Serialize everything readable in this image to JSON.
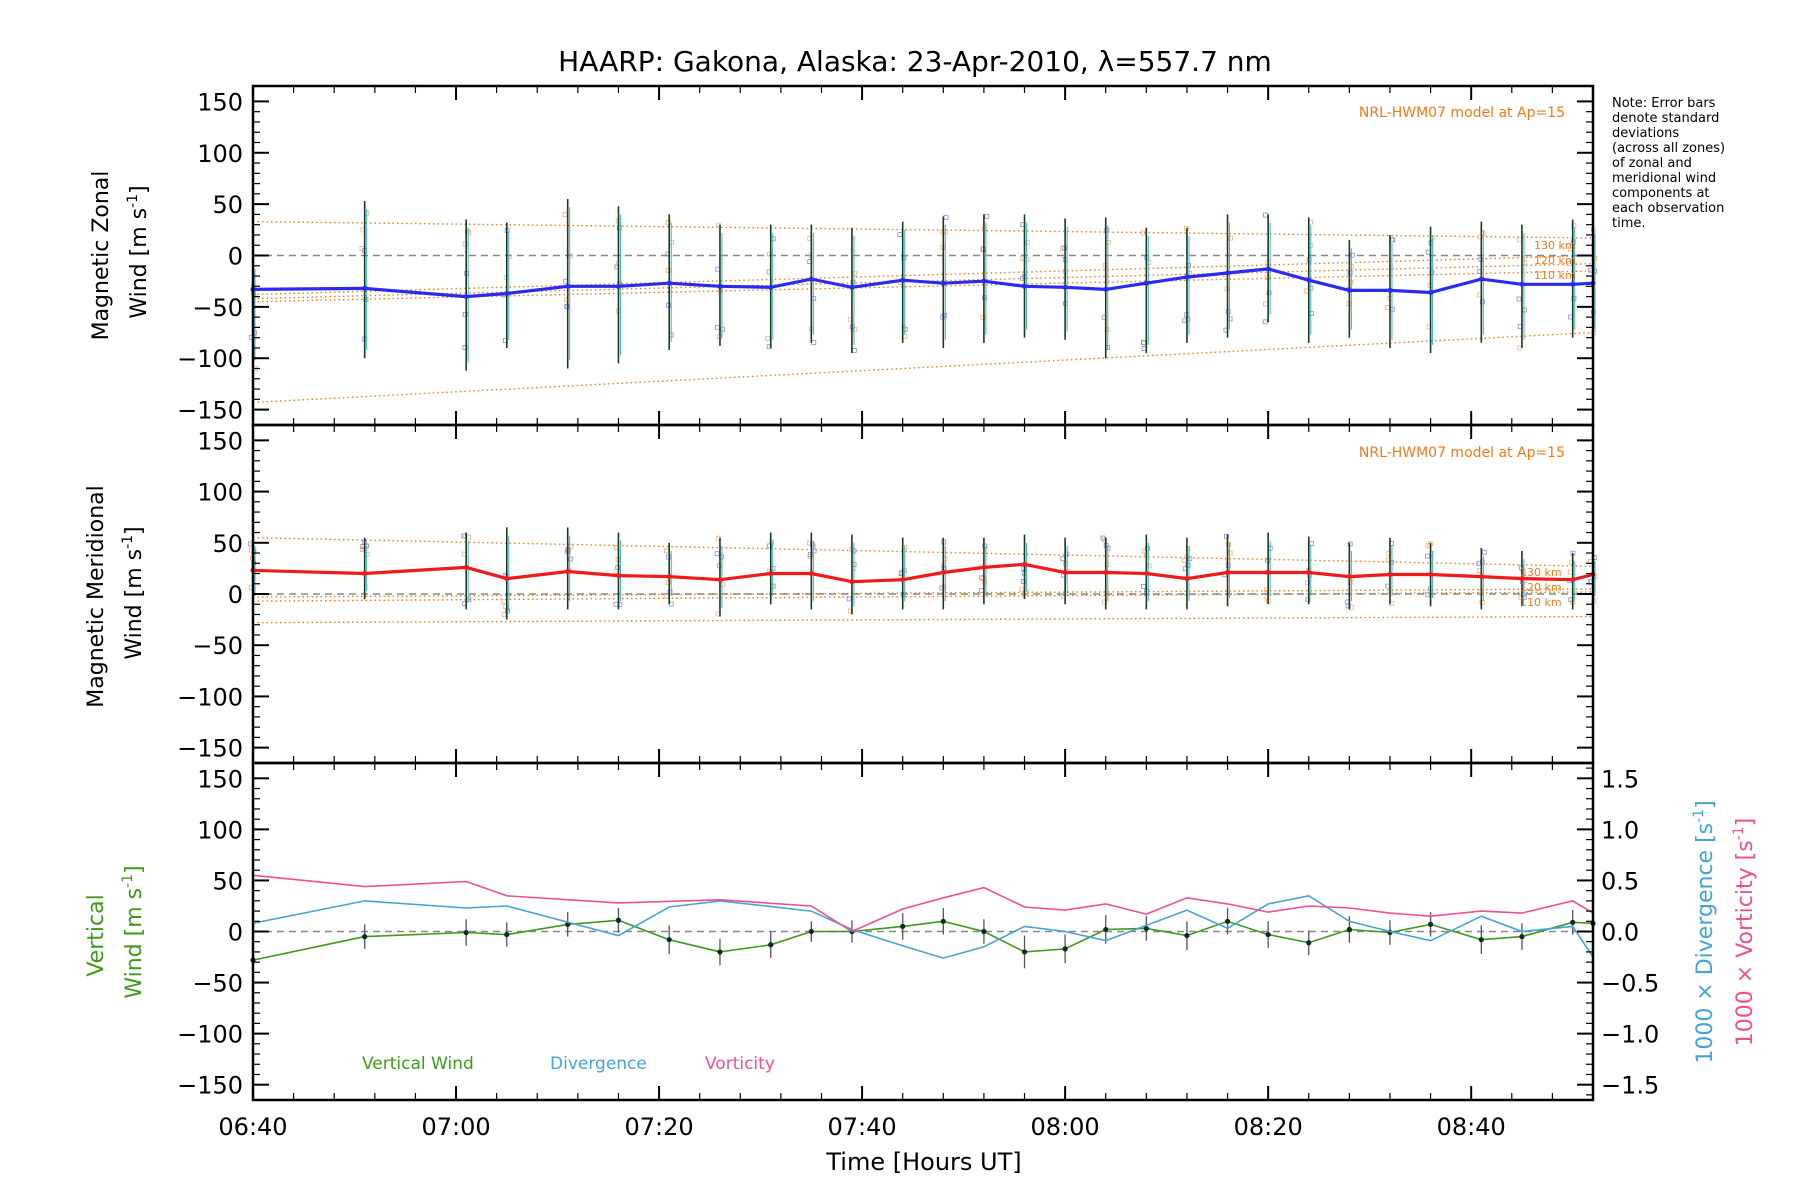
{
  "title": "HAARP: Gakona,  Alaska: 23-Apr-2010, λ=557.7 nm",
  "note_lines": [
    "Note: Error bars",
    "denote standard",
    "deviations",
    "(across all zones)",
    "of zonal and",
    "meridional wind",
    "components at",
    "each observation",
    "time."
  ],
  "colors": {
    "zonal": "#2b2bf0",
    "meridional": "#f01a1a",
    "vertical": "#3f9a1a",
    "divergence": "#45a4d6",
    "vorticity": "#f0508a",
    "model": "#f07a1a",
    "zero_line": "#888888",
    "scatter_a": "#8c8cd8",
    "scatter_b": "#f5b080"
  },
  "chart_data": [
    {
      "type": "line",
      "panel": "zonal",
      "ylabel_line1": "Magnetic Zonal",
      "ylabel_line2": "Wind [m s",
      "ylabel_sup": "-1",
      "ylabel_end": "]",
      "ylim": [
        -165,
        165
      ],
      "yticks": [
        -150,
        -100,
        -50,
        0,
        50,
        100,
        150
      ],
      "xlim_minutes": [
        400,
        532
      ],
      "model_label": "NRL-HWM07 model at Ap=15",
      "model_alt_labels": [
        "130 km",
        "120 km",
        "110 km"
      ],
      "model_lines": {
        "upper": [
          [
            400,
            33
          ],
          [
            532,
            17
          ]
        ],
        "mid_a": [
          [
            400,
            -38
          ],
          [
            532,
            0
          ]
        ],
        "mid_b": [
          [
            400,
            -42
          ],
          [
            532,
            -8
          ]
        ],
        "mid_c": [
          [
            400,
            -45
          ],
          [
            532,
            -15
          ]
        ],
        "lower": [
          [
            400,
            -143
          ],
          [
            532,
            -75
          ]
        ]
      },
      "series": [
        {
          "name": "",
          "x": [
            400,
            411,
            421,
            425,
            431,
            436,
            441,
            446,
            451,
            455,
            459,
            464,
            468,
            472,
            476,
            480,
            484,
            488,
            492,
            496,
            500,
            504,
            508,
            512,
            516,
            521,
            525,
            530,
            532
          ],
          "y": [
            -33,
            -32,
            -40,
            -37,
            -30,
            -30,
            -27,
            -30,
            -31,
            -23,
            -31,
            -24,
            -27,
            -25,
            -30,
            -31,
            -33,
            -27,
            -21,
            -17,
            -13,
            -24,
            -34,
            -34,
            -36,
            -23,
            -28,
            -28,
            -27
          ],
          "err_low": [
            -110,
            -100,
            -112,
            -90,
            -110,
            -105,
            -92,
            -88,
            -90,
            -85,
            -95,
            -85,
            -90,
            -85,
            -80,
            -82,
            -100,
            -95,
            -85,
            -80,
            -65,
            -85,
            -80,
            -90,
            -95,
            -85,
            -90,
            -80,
            -80
          ],
          "err_high": [
            -5,
            53,
            35,
            32,
            55,
            48,
            40,
            30,
            30,
            30,
            27,
            33,
            38,
            40,
            40,
            36,
            37,
            27,
            27,
            40,
            40,
            37,
            15,
            20,
            28,
            33,
            30,
            35,
            30
          ]
        }
      ]
    },
    {
      "type": "line",
      "panel": "meridional",
      "ylabel_line1": "Magnetic Meridional",
      "ylabel_line2": "Wind [m s",
      "ylabel_sup": "-1",
      "ylabel_end": "]",
      "ylim": [
        -165,
        165
      ],
      "yticks": [
        -150,
        -100,
        -50,
        0,
        50,
        100,
        150
      ],
      "xlim_minutes": [
        400,
        532
      ],
      "model_label": "NRL-HWM07 model at Ap=15",
      "model_alt_labels": [
        "130 km",
        "120 km",
        "110 km"
      ],
      "model_lines": {
        "upper": [
          [
            400,
            55
          ],
          [
            532,
            27
          ]
        ],
        "mid_a": [
          [
            400,
            -3
          ],
          [
            532,
            5
          ]
        ],
        "mid_b": [
          [
            400,
            -7
          ],
          [
            532,
            2
          ]
        ],
        "lower": [
          [
            400,
            -28
          ],
          [
            532,
            -22
          ]
        ]
      },
      "series": [
        {
          "name": "",
          "x": [
            400,
            411,
            421,
            425,
            431,
            436,
            441,
            446,
            451,
            455,
            459,
            464,
            468,
            472,
            476,
            480,
            484,
            488,
            492,
            496,
            500,
            504,
            508,
            512,
            516,
            521,
            525,
            530,
            532
          ],
          "y": [
            23,
            20,
            26,
            15,
            22,
            18,
            17,
            14,
            20,
            20,
            12,
            14,
            21,
            26,
            29,
            21,
            21,
            20,
            15,
            21,
            21,
            21,
            17,
            19,
            19,
            17,
            15,
            14,
            19
          ],
          "err_low": [
            -10,
            -5,
            -15,
            -25,
            -15,
            -15,
            -10,
            -22,
            -10,
            -15,
            -20,
            -15,
            -15,
            -10,
            -5,
            -10,
            -15,
            -15,
            -15,
            -12,
            -10,
            -10,
            -15,
            -10,
            -12,
            -15,
            -12,
            -15,
            -10
          ],
          "err_high": [
            55,
            55,
            60,
            65,
            65,
            60,
            50,
            55,
            60,
            60,
            58,
            55,
            55,
            55,
            58,
            55,
            55,
            58,
            55,
            58,
            60,
            56,
            50,
            55,
            50,
            45,
            42,
            40,
            40
          ]
        }
      ]
    },
    {
      "type": "line",
      "panel": "vertical",
      "ylabel_line1": "Vertical",
      "ylabel_line2": "Wind [m s",
      "ylabel_sup": "-1",
      "ylabel_end": "]",
      "ylabel_right1": "1000 × Divergence [s",
      "ylabel_right2": "1000 × Vorticity [s",
      "ylabel_right_sup": "-1",
      "ylabel_right_end": "]",
      "ylim": [
        -165,
        165
      ],
      "yticks": [
        -150,
        -100,
        -50,
        0,
        50,
        100,
        150
      ],
      "y2lim": [
        -1.65,
        1.65
      ],
      "y2ticks": [
        -1.5,
        -1.0,
        -0.5,
        0.0,
        0.5,
        1.0,
        1.5
      ],
      "y2tick_labels": [
        "−1.5",
        "−1.0",
        "−0.5",
        "0.0",
        "0.5",
        "1.0",
        "1.5"
      ],
      "xlim_minutes": [
        400,
        532
      ],
      "xticks_minutes": [
        400,
        420,
        440,
        460,
        480,
        500,
        520
      ],
      "xtick_labels": [
        "06:40",
        "07:00",
        "07:20",
        "07:40",
        "08:00",
        "08:20",
        "08:40"
      ],
      "xlabel": "Time [Hours UT]",
      "legend": [
        "Vertical Wind",
        "Divergence",
        "Vorticity"
      ],
      "series": [
        {
          "name": "Vertical Wind",
          "axis": "left",
          "x": [
            400,
            411,
            421,
            425,
            431,
            436,
            441,
            446,
            451,
            455,
            459,
            464,
            468,
            472,
            476,
            480,
            484,
            488,
            492,
            496,
            500,
            504,
            508,
            512,
            516,
            521,
            525,
            530,
            532
          ],
          "y": [
            -28,
            -5,
            -1,
            -3,
            7,
            11,
            -8,
            -20,
            -13,
            0,
            0,
            5,
            10,
            0,
            -20,
            -17,
            2,
            3,
            -4,
            10,
            -3,
            -11,
            2,
            -1,
            7,
            -8,
            -5,
            9,
            8
          ],
          "err": [
            5,
            12,
            13,
            12,
            12,
            12,
            14,
            13,
            13,
            10,
            11,
            13,
            13,
            12,
            16,
            14,
            14,
            12,
            14,
            13,
            13,
            12,
            13,
            12,
            12,
            14,
            13,
            12,
            12
          ]
        },
        {
          "name": "Divergence",
          "axis": "right",
          "x": [
            400,
            411,
            421,
            425,
            436,
            441,
            446,
            455,
            459,
            464,
            468,
            472,
            476,
            480,
            484,
            488,
            492,
            496,
            500,
            504,
            508,
            512,
            516,
            521,
            525,
            530,
            532
          ],
          "y": [
            0.08,
            0.3,
            0.23,
            0.25,
            -0.04,
            0.24,
            0.3,
            0.2,
            0.02,
            -0.14,
            -0.26,
            -0.15,
            0.05,
            0.0,
            -0.09,
            0.06,
            0.21,
            0.03,
            0.27,
            0.35,
            0.1,
            0.0,
            -0.09,
            0.15,
            0.0,
            0.05,
            -0.25
          ]
        },
        {
          "name": "Vorticity",
          "axis": "right",
          "x": [
            400,
            411,
            421,
            425,
            436,
            446,
            455,
            459,
            464,
            468,
            472,
            476,
            480,
            484,
            488,
            492,
            496,
            500,
            504,
            508,
            512,
            516,
            521,
            525,
            530,
            532
          ],
          "y": [
            0.55,
            0.44,
            0.49,
            0.35,
            0.28,
            0.31,
            0.25,
            0.0,
            0.22,
            0.33,
            0.43,
            0.24,
            0.21,
            0.27,
            0.17,
            0.33,
            0.27,
            0.19,
            0.25,
            0.23,
            0.18,
            0.15,
            0.2,
            0.18,
            0.3,
            0.18
          ]
        }
      ]
    }
  ]
}
